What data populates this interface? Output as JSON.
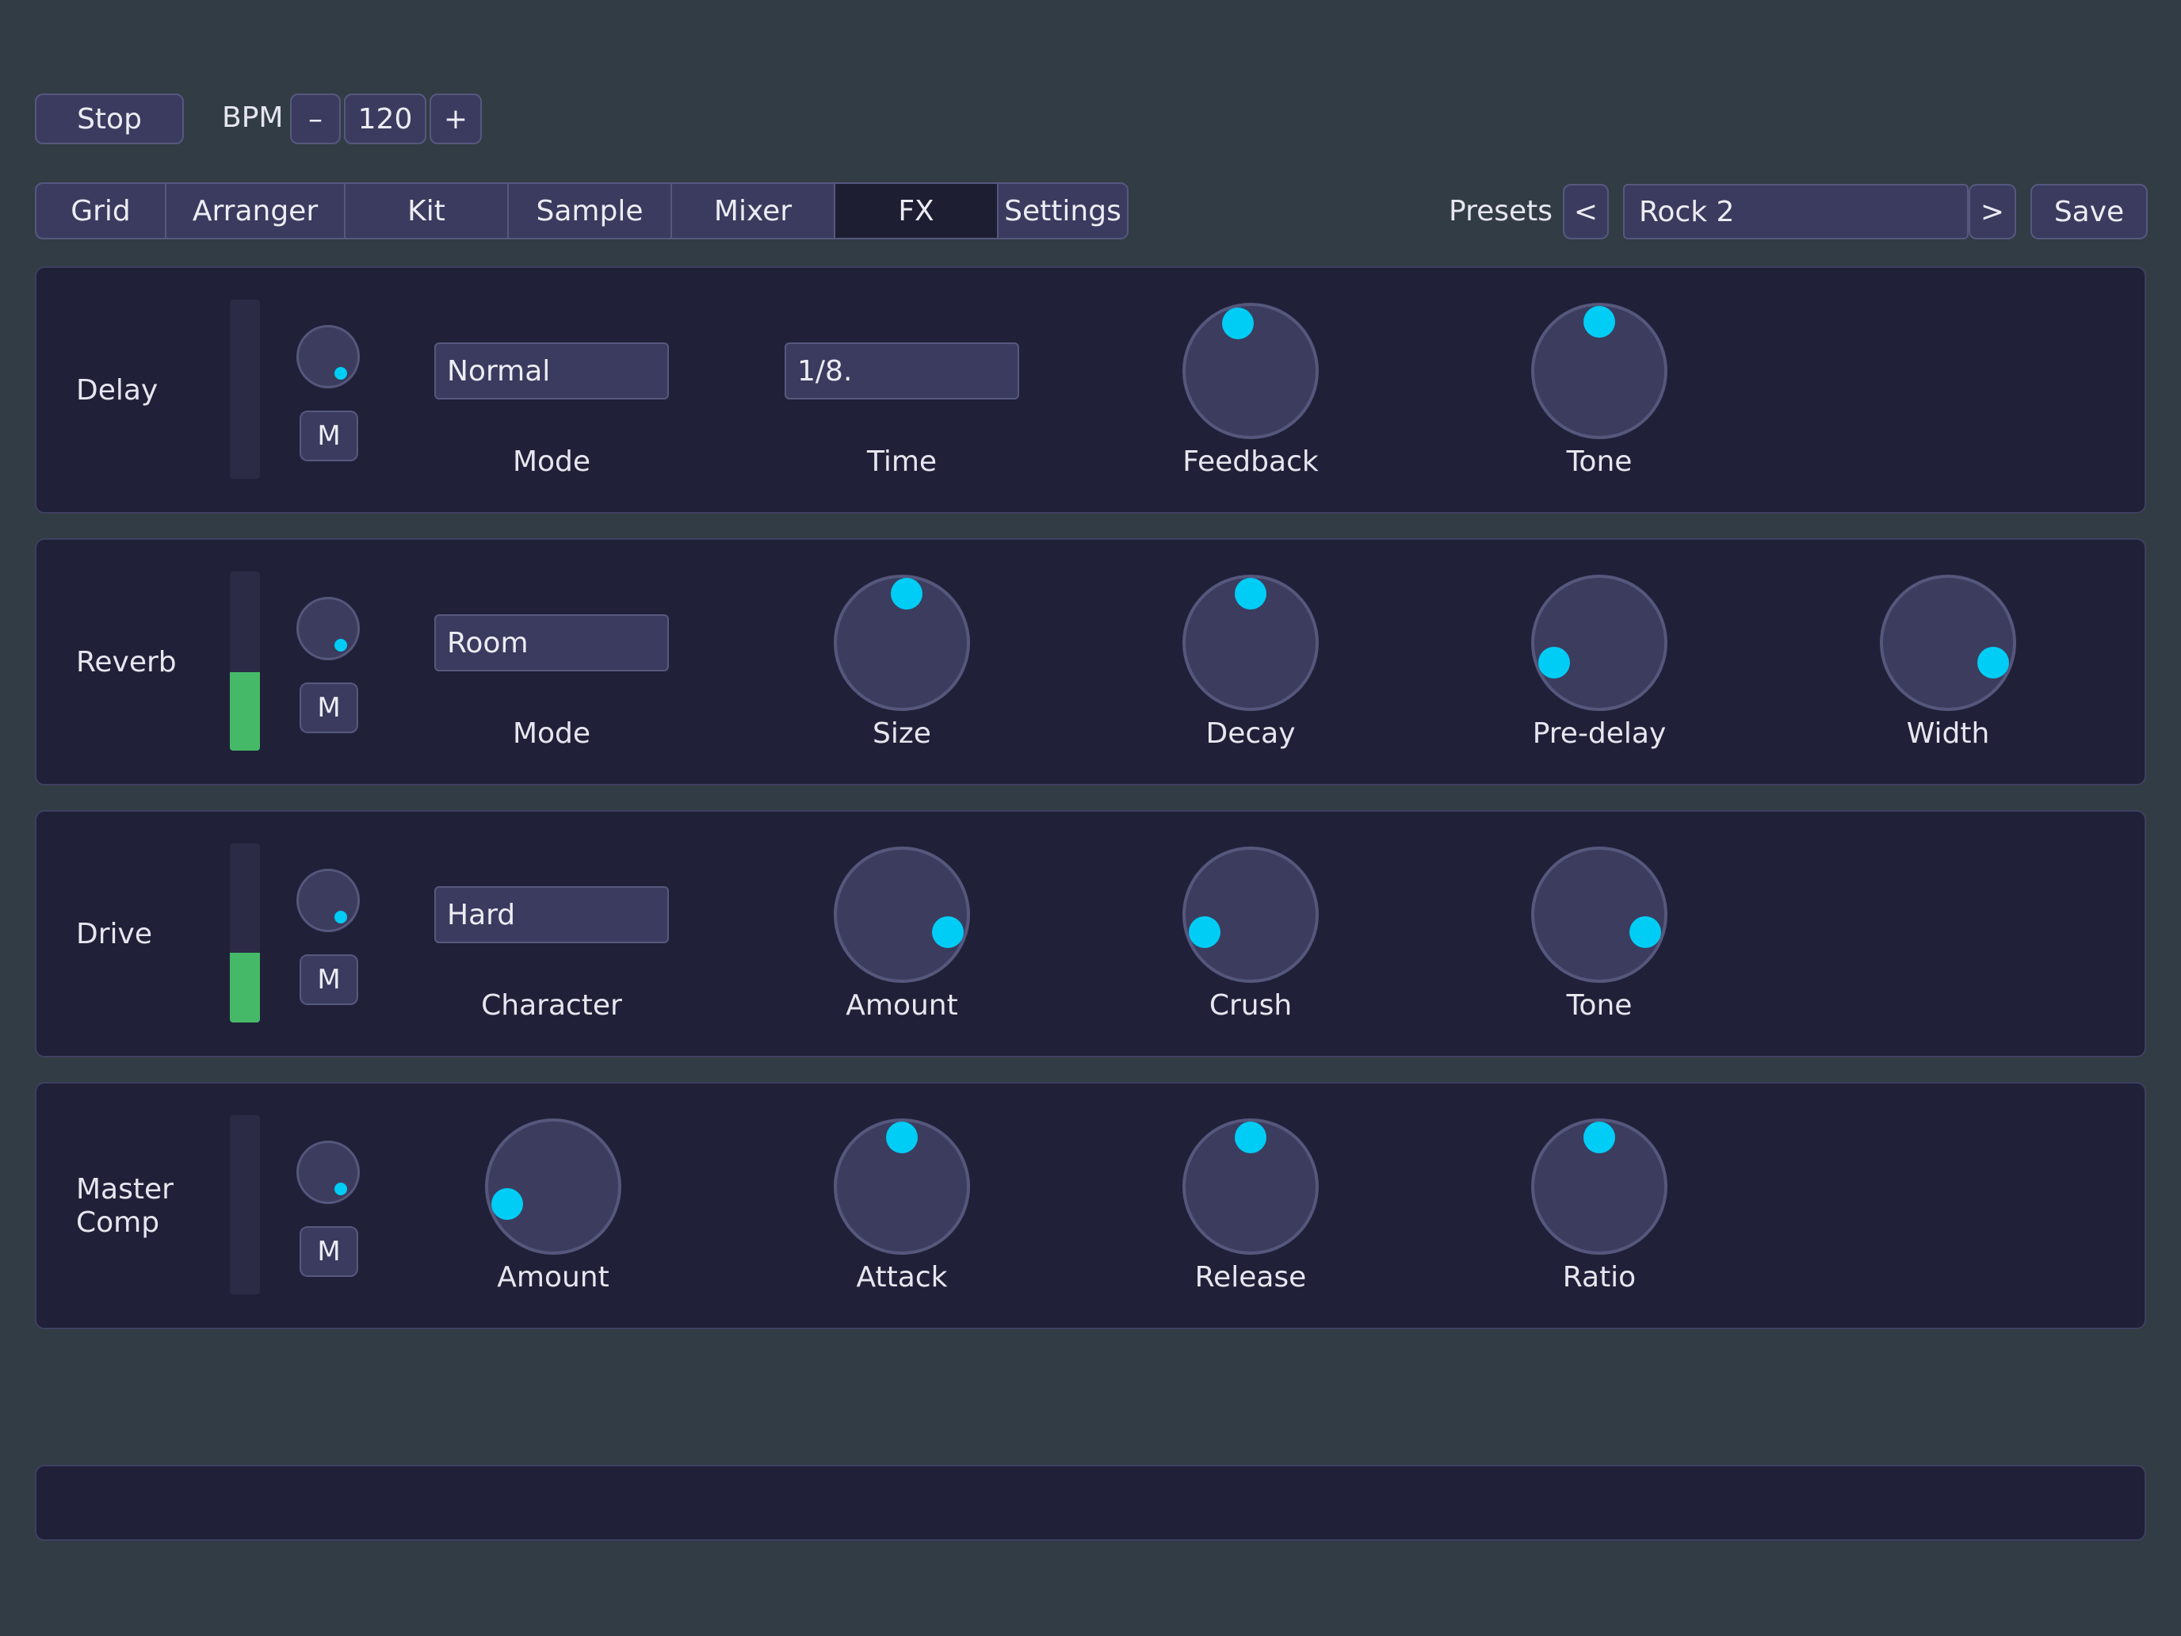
{
  "transport": {
    "stop_label": "Stop",
    "bpm_label": "BPM",
    "bpm_minus": "–",
    "bpm_value": "120",
    "bpm_plus": "+"
  },
  "tabs": [
    "Grid",
    "Arranger",
    "Kit",
    "Sample",
    "Mixer",
    "FX",
    "Settings"
  ],
  "active_tab": "FX",
  "presets": {
    "label": "Presets",
    "prev": "<",
    "name": "Rock 2",
    "next": ">",
    "save": "Save"
  },
  "colors": {
    "accent": "#00cdf5",
    "meter": "#46b968",
    "panel": "#202038",
    "background": "#323c44"
  },
  "panels": [
    {
      "name": "Delay",
      "meter_level": 0,
      "send_level": 0.35,
      "mute_label": "M",
      "controls": [
        {
          "type": "select",
          "label": "Mode",
          "value": "Normal"
        },
        {
          "type": "select",
          "label": "Time",
          "value": "1/8."
        },
        {
          "type": "knob",
          "label": "Feedback",
          "value": 0.45
        },
        {
          "type": "knob",
          "label": "Tone",
          "value": 0.5
        }
      ]
    },
    {
      "name": "Reverb",
      "meter_level": 0.44,
      "send_level": 0.35,
      "mute_label": "M",
      "controls": [
        {
          "type": "select",
          "label": "Mode",
          "value": "Room"
        },
        {
          "type": "knob",
          "label": "Size",
          "value": 0.52
        },
        {
          "type": "knob",
          "label": "Decay",
          "value": 0.5
        },
        {
          "type": "knob",
          "label": "Pre-delay",
          "value": 0.12
        },
        {
          "type": "knob",
          "label": "Width",
          "value": 0.88
        }
      ]
    },
    {
      "name": "Drive",
      "meter_level": 0.39,
      "send_level": 0.35,
      "mute_label": "M",
      "controls": [
        {
          "type": "select",
          "label": "Character",
          "value": "Hard"
        },
        {
          "type": "knob",
          "label": "Amount",
          "value": 0.87
        },
        {
          "type": "knob",
          "label": "Crush",
          "value": 0.13
        },
        {
          "type": "knob",
          "label": "Tone",
          "value": 0.87
        }
      ]
    },
    {
      "name": "Master\nComp",
      "meter_level": 0,
      "send_level": 0.35,
      "mute_label": "M",
      "controls": [
        {
          "type": "knob",
          "label": "Amount",
          "value": 0.13
        },
        {
          "type": "knob",
          "label": "Attack",
          "value": 0.5
        },
        {
          "type": "knob",
          "label": "Release",
          "value": 0.5
        },
        {
          "type": "knob",
          "label": "Ratio",
          "value": 0.5
        }
      ]
    }
  ]
}
